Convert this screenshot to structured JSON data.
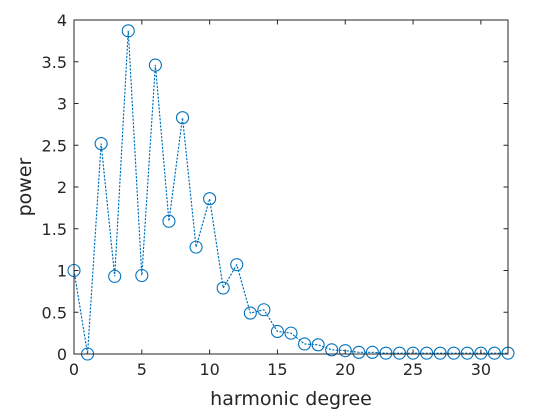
{
  "chart_data": {
    "type": "scatter",
    "xlabel": "harmonic degree",
    "ylabel": "power",
    "xlim": [
      0,
      32
    ],
    "ylim": [
      0,
      4
    ],
    "xticks": [
      0,
      5,
      10,
      15,
      20,
      25,
      30
    ],
    "xtick_labels": [
      "0",
      "5",
      "10",
      "15",
      "20",
      "25",
      "30"
    ],
    "yticks": [
      0,
      0.5,
      1,
      1.5,
      2,
      2.5,
      3,
      3.5,
      4
    ],
    "ytick_labels": [
      "0",
      "0.5",
      "1",
      "1.5",
      "2",
      "2.5",
      "3",
      "3.5",
      "4"
    ],
    "grid": false,
    "line_style": "dotted",
    "marker": "open-circle",
    "color": "#0072BD",
    "series": [
      {
        "x": [
          0,
          1,
          2,
          3,
          4,
          5,
          6,
          7,
          8,
          9,
          10,
          11,
          12,
          13,
          14,
          15,
          16,
          17,
          18,
          19,
          20,
          21,
          22,
          23,
          24,
          25,
          26,
          27,
          28,
          29,
          30,
          31,
          32
        ],
        "values": [
          1.0,
          0.0,
          2.52,
          0.93,
          3.87,
          0.94,
          3.46,
          1.59,
          2.83,
          1.28,
          1.86,
          0.79,
          1.07,
          0.49,
          0.53,
          0.27,
          0.25,
          0.12,
          0.11,
          0.05,
          0.04,
          0.02,
          0.02,
          0.01,
          0.01,
          0.01,
          0.01,
          0.01,
          0.01,
          0.01,
          0.01,
          0.01,
          0.01
        ]
      }
    ]
  }
}
